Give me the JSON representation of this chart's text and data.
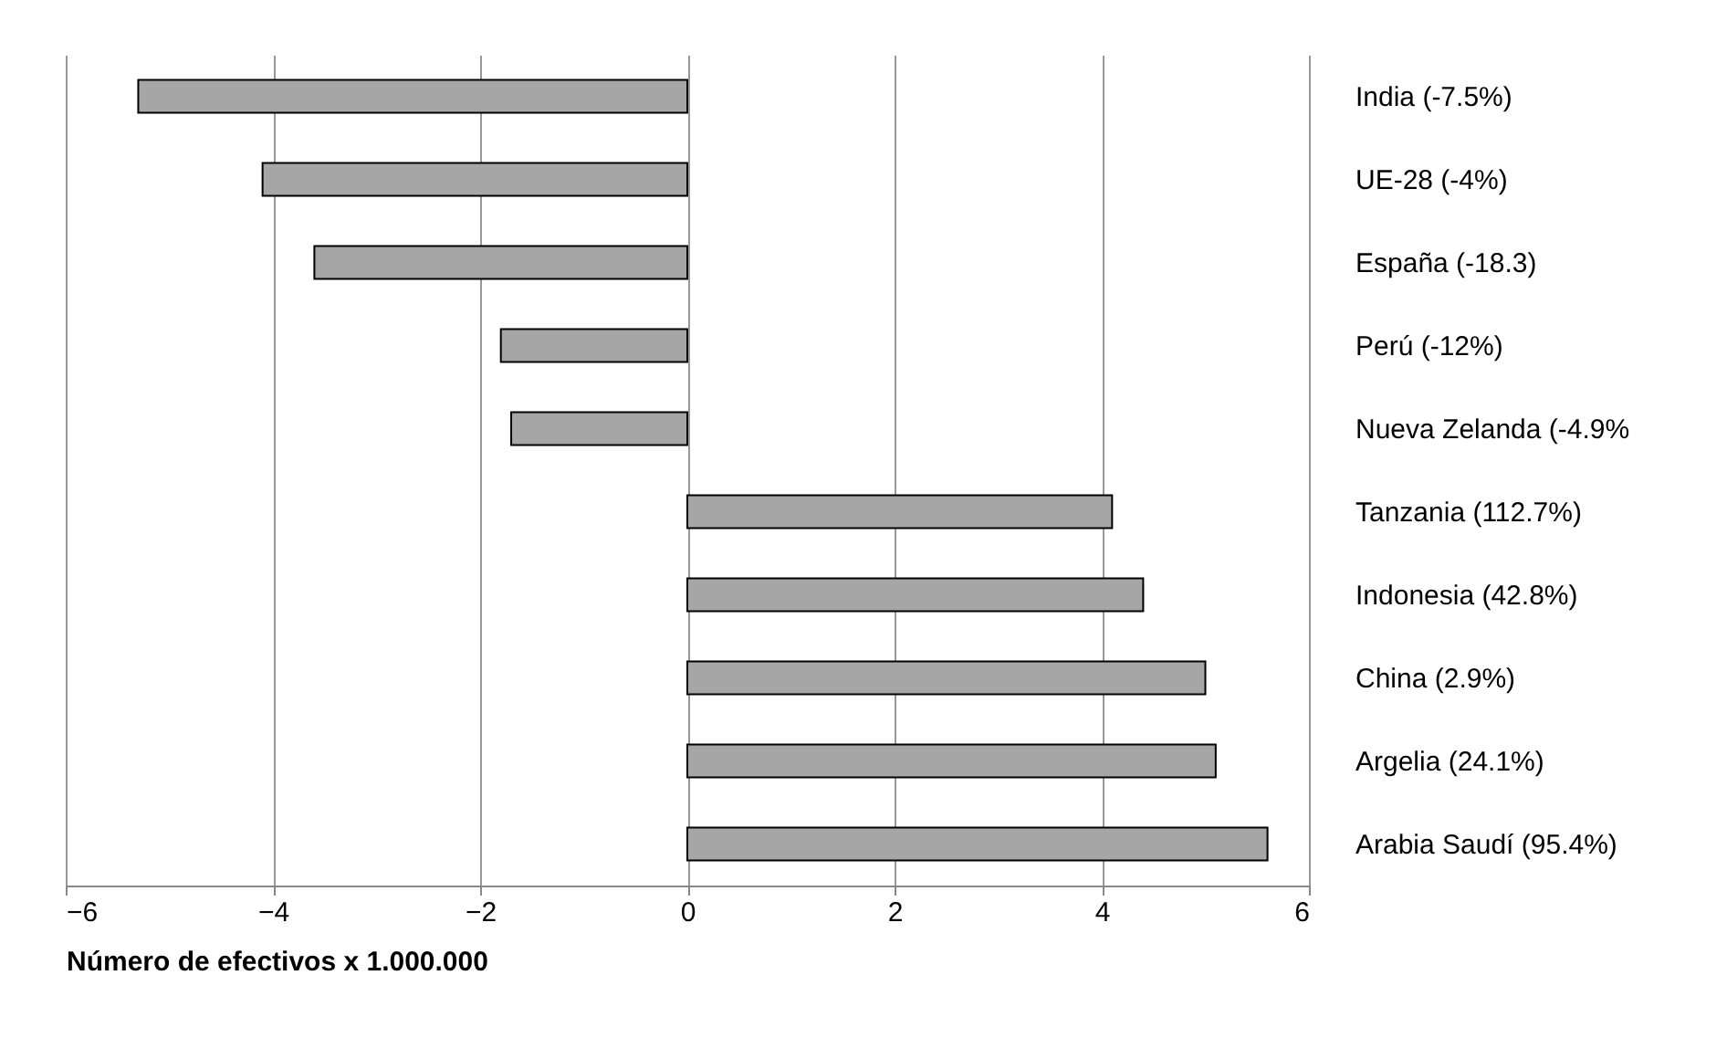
{
  "chart_data": {
    "type": "bar",
    "orientation": "horizontal",
    "xlabel": "Número de efectivos x 1.000.000",
    "categories": [
      "India (-7.5%)",
      "UE-28 (-4%)",
      "España (-18.3)",
      "Perú (-12%)",
      "Nueva Zelanda (-4.9%",
      "Tanzania (112.7%)",
      "Indonesia (42.8%)",
      "China (2.9%)",
      "Argelia (24.1%)",
      "Arabia Saudí (95.4%)"
    ],
    "values": [
      -5.3,
      -4.1,
      -3.6,
      -1.8,
      -1.7,
      4.1,
      4.4,
      5.0,
      5.1,
      5.6
    ],
    "color": "#a6a6a6",
    "xlim": [
      -6,
      6
    ],
    "xticks": [
      -6,
      -4,
      -2,
      0,
      2,
      4,
      6
    ],
    "grid": "x"
  }
}
